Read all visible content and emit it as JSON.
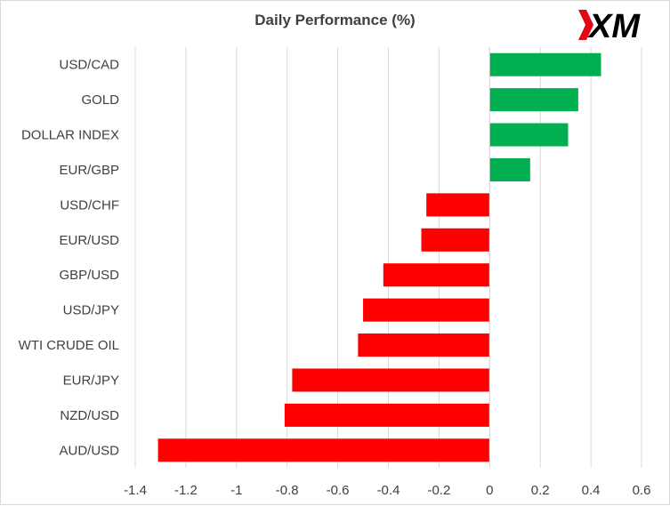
{
  "chart_data": {
    "type": "bar",
    "orientation": "horizontal",
    "title": "Daily Performance (%)",
    "categories": [
      "USD/CAD",
      "GOLD",
      "DOLLAR INDEX",
      "EUR/GBP",
      "USD/CHF",
      "EUR/USD",
      "GBP/USD",
      "USD/JPY",
      "WTI CRUDE OIL",
      "EUR/JPY",
      "NZD/USD",
      "AUD/USD"
    ],
    "values": [
      0.44,
      0.35,
      0.31,
      0.16,
      -0.25,
      -0.27,
      -0.42,
      -0.5,
      -0.52,
      -0.78,
      -0.81,
      -1.31
    ],
    "xlim": [
      -1.4,
      0.6
    ],
    "xticks": [
      "-1.4",
      "-1.2",
      "-1",
      "-0.8",
      "-0.6",
      "-0.4",
      "-0.2",
      "0",
      "0.2",
      "0.4",
      "0.6"
    ],
    "grid": "vertical",
    "legend": "none",
    "colors": {
      "positive": "#00b050",
      "negative": "#ff0000",
      "grid": "#d9d9d9",
      "text": "#404040"
    }
  },
  "brand": {
    "logo_text": "XM",
    "accent": "#e30613",
    "dark": "#000000"
  }
}
